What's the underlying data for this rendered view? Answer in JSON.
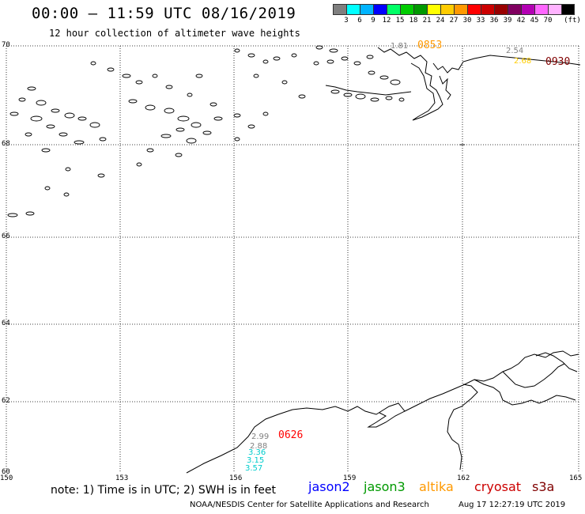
{
  "header": {
    "title": "00:00 – 11:59 UTC 08/16/2019",
    "subtitle": "12 hour collection of altimeter wave heights"
  },
  "color_scale": {
    "unit": "(ft)",
    "colors": [
      "#7f7f7f",
      "#00ffff",
      "#00b4ff",
      "#0000ff",
      "#00ff66",
      "#00cc00",
      "#009900",
      "#ffff00",
      "#ffcc00",
      "#ff9900",
      "#ff0000",
      "#cc0000",
      "#990000",
      "#800060",
      "#b300b3",
      "#ff66ff",
      "#ffb3ff",
      "#000000"
    ],
    "labels": [
      "3",
      "6",
      "9",
      "12",
      "15",
      "18",
      "21",
      "24",
      "27",
      "30",
      "33",
      "36",
      "39",
      "42",
      "45",
      "70"
    ]
  },
  "axes": {
    "lat_labels": [
      "70",
      "68",
      "66",
      "64",
      "62",
      "60"
    ],
    "lon_labels": [
      "150",
      "153",
      "156",
      "159",
      "162",
      "165"
    ]
  },
  "passes": [
    {
      "time": "0853",
      "color": "#ff9900"
    },
    {
      "time": "0930",
      "color": "#800000"
    },
    {
      "time": "0626",
      "color": "#ff0000"
    }
  ],
  "swh_values": [
    {
      "value": "1.81",
      "color": "#808080"
    },
    {
      "value": "2.54",
      "color": "#808080"
    },
    {
      "value": "2.68",
      "color": "#ffcc00"
    },
    {
      "value": "2.99",
      "color": "#808080"
    },
    {
      "value": "2.88",
      "color": "#808080"
    },
    {
      "value": "3.36",
      "color": "#00cccc"
    },
    {
      "value": "3.15",
      "color": "#00cccc"
    },
    {
      "value": "3.57",
      "color": "#00cccc"
    }
  ],
  "note": "note: 1) Time is in UTC; 2) SWH is in feet",
  "satellites": [
    {
      "name": "jason2",
      "color": "#0000ff"
    },
    {
      "name": "jason3",
      "color": "#009900"
    },
    {
      "name": "altika",
      "color": "#ff9900"
    },
    {
      "name": "cryosat",
      "color": "#cc0000"
    },
    {
      "name": "s3a",
      "color": "#800000"
    }
  ],
  "footer": {
    "credit": "NOAA/NESDIS Center for Satellite Applications and Research",
    "timestamp": "Aug 17 12:27:19 UTC 2019"
  }
}
